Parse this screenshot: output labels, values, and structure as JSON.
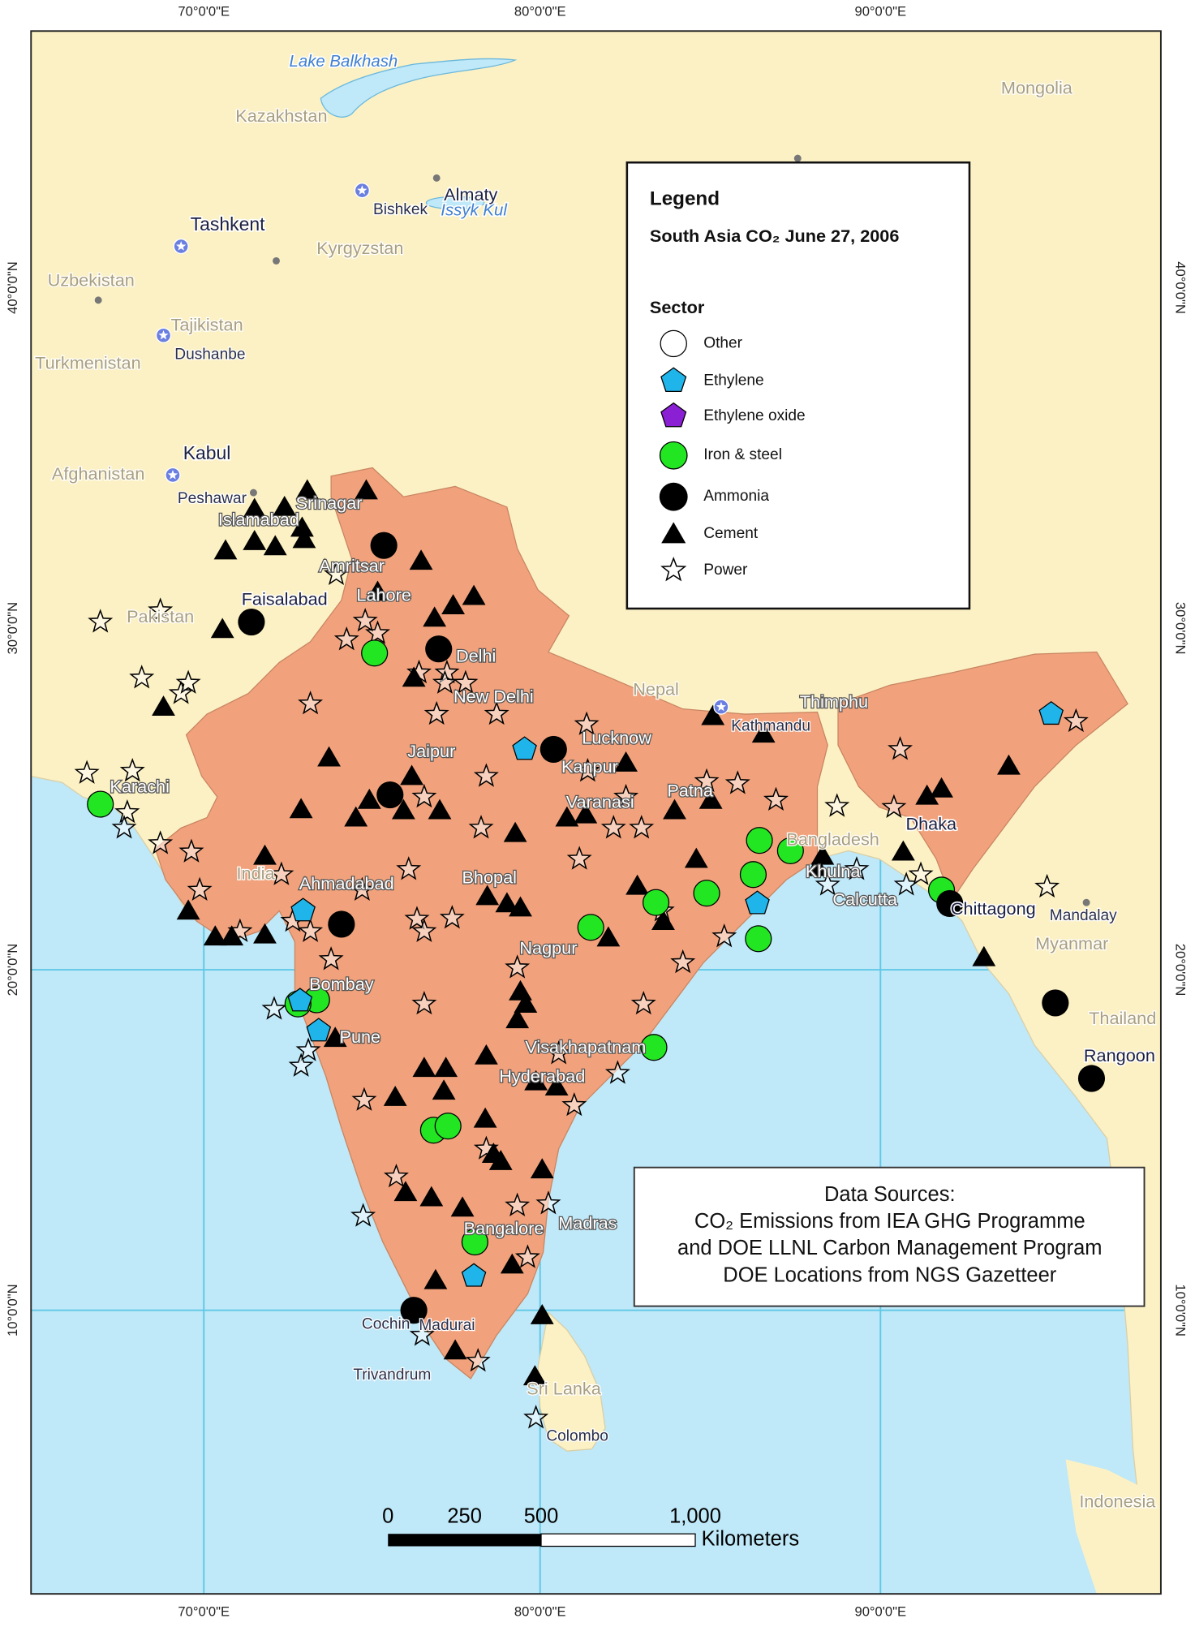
{
  "map": {
    "legend_title": "Legend",
    "legend_subtitle": "South Asia CO₂  June 27, 2006",
    "legend_heading": "Sector",
    "sectors": [
      "Other",
      "Ethylene",
      "Ethylene oxide",
      "Iron & steel",
      "Ammonia",
      "Cement",
      "Power"
    ],
    "data_sources": [
      "Data Sources:",
      "CO₂ Emissions from IEA GHG Programme",
      "and DOE LLNL Carbon Management Program",
      "DOE Locations from NGS Gazetteer"
    ],
    "scale_bar": {
      "labels": [
        "0",
        "250",
        "500",
        "1,000"
      ],
      "unit": "Kilometers"
    },
    "graticule": {
      "longitudes": [
        "70°0'0\"E",
        "80°0'0\"E",
        "90°0'0\"E"
      ],
      "latitudes": [
        "40°0'0\"N",
        "30°0'0\"N",
        "20°0'0\"N",
        "10°0'0\"N"
      ]
    },
    "places": [
      "Lake Balkhash",
      "Issyk Kul",
      "Kazakhstan",
      "Mongolia",
      "Kyrgyzstan",
      "Uzbekistan",
      "Tajikistan",
      "Turkmenistan",
      "Afghanistan",
      "Pakistan",
      "Nepal",
      "India",
      "Bangladesh",
      "Myanmar",
      "Thailand",
      "Indonesia",
      "Sri Lanka",
      "Tashkent",
      "Almaty",
      "Bishkek",
      "Dushanbe",
      "Kabul",
      "Peshawar",
      "Islamabad",
      "Srinagar",
      "Amritsar",
      "Faisalabad",
      "Lahore",
      "Delhi",
      "New Delhi",
      "Jaipur",
      "Lucknow",
      "Kanpur",
      "Varanasi",
      "Patna",
      "Kathmandu",
      "Thimphu",
      "Dhaka",
      "Khulna",
      "Calcutta",
      "Chittagong",
      "Mandalay",
      "Rangoon",
      "Karachi",
      "Ahmadabad",
      "Bhopal",
      "Nagpur",
      "Bombay",
      "Pune",
      "Visakhapatnam",
      "Hyderabad",
      "Bangalore",
      "Madras",
      "Cochin",
      "Madurai",
      "Trivandrum",
      "Colombo"
    ]
  }
}
